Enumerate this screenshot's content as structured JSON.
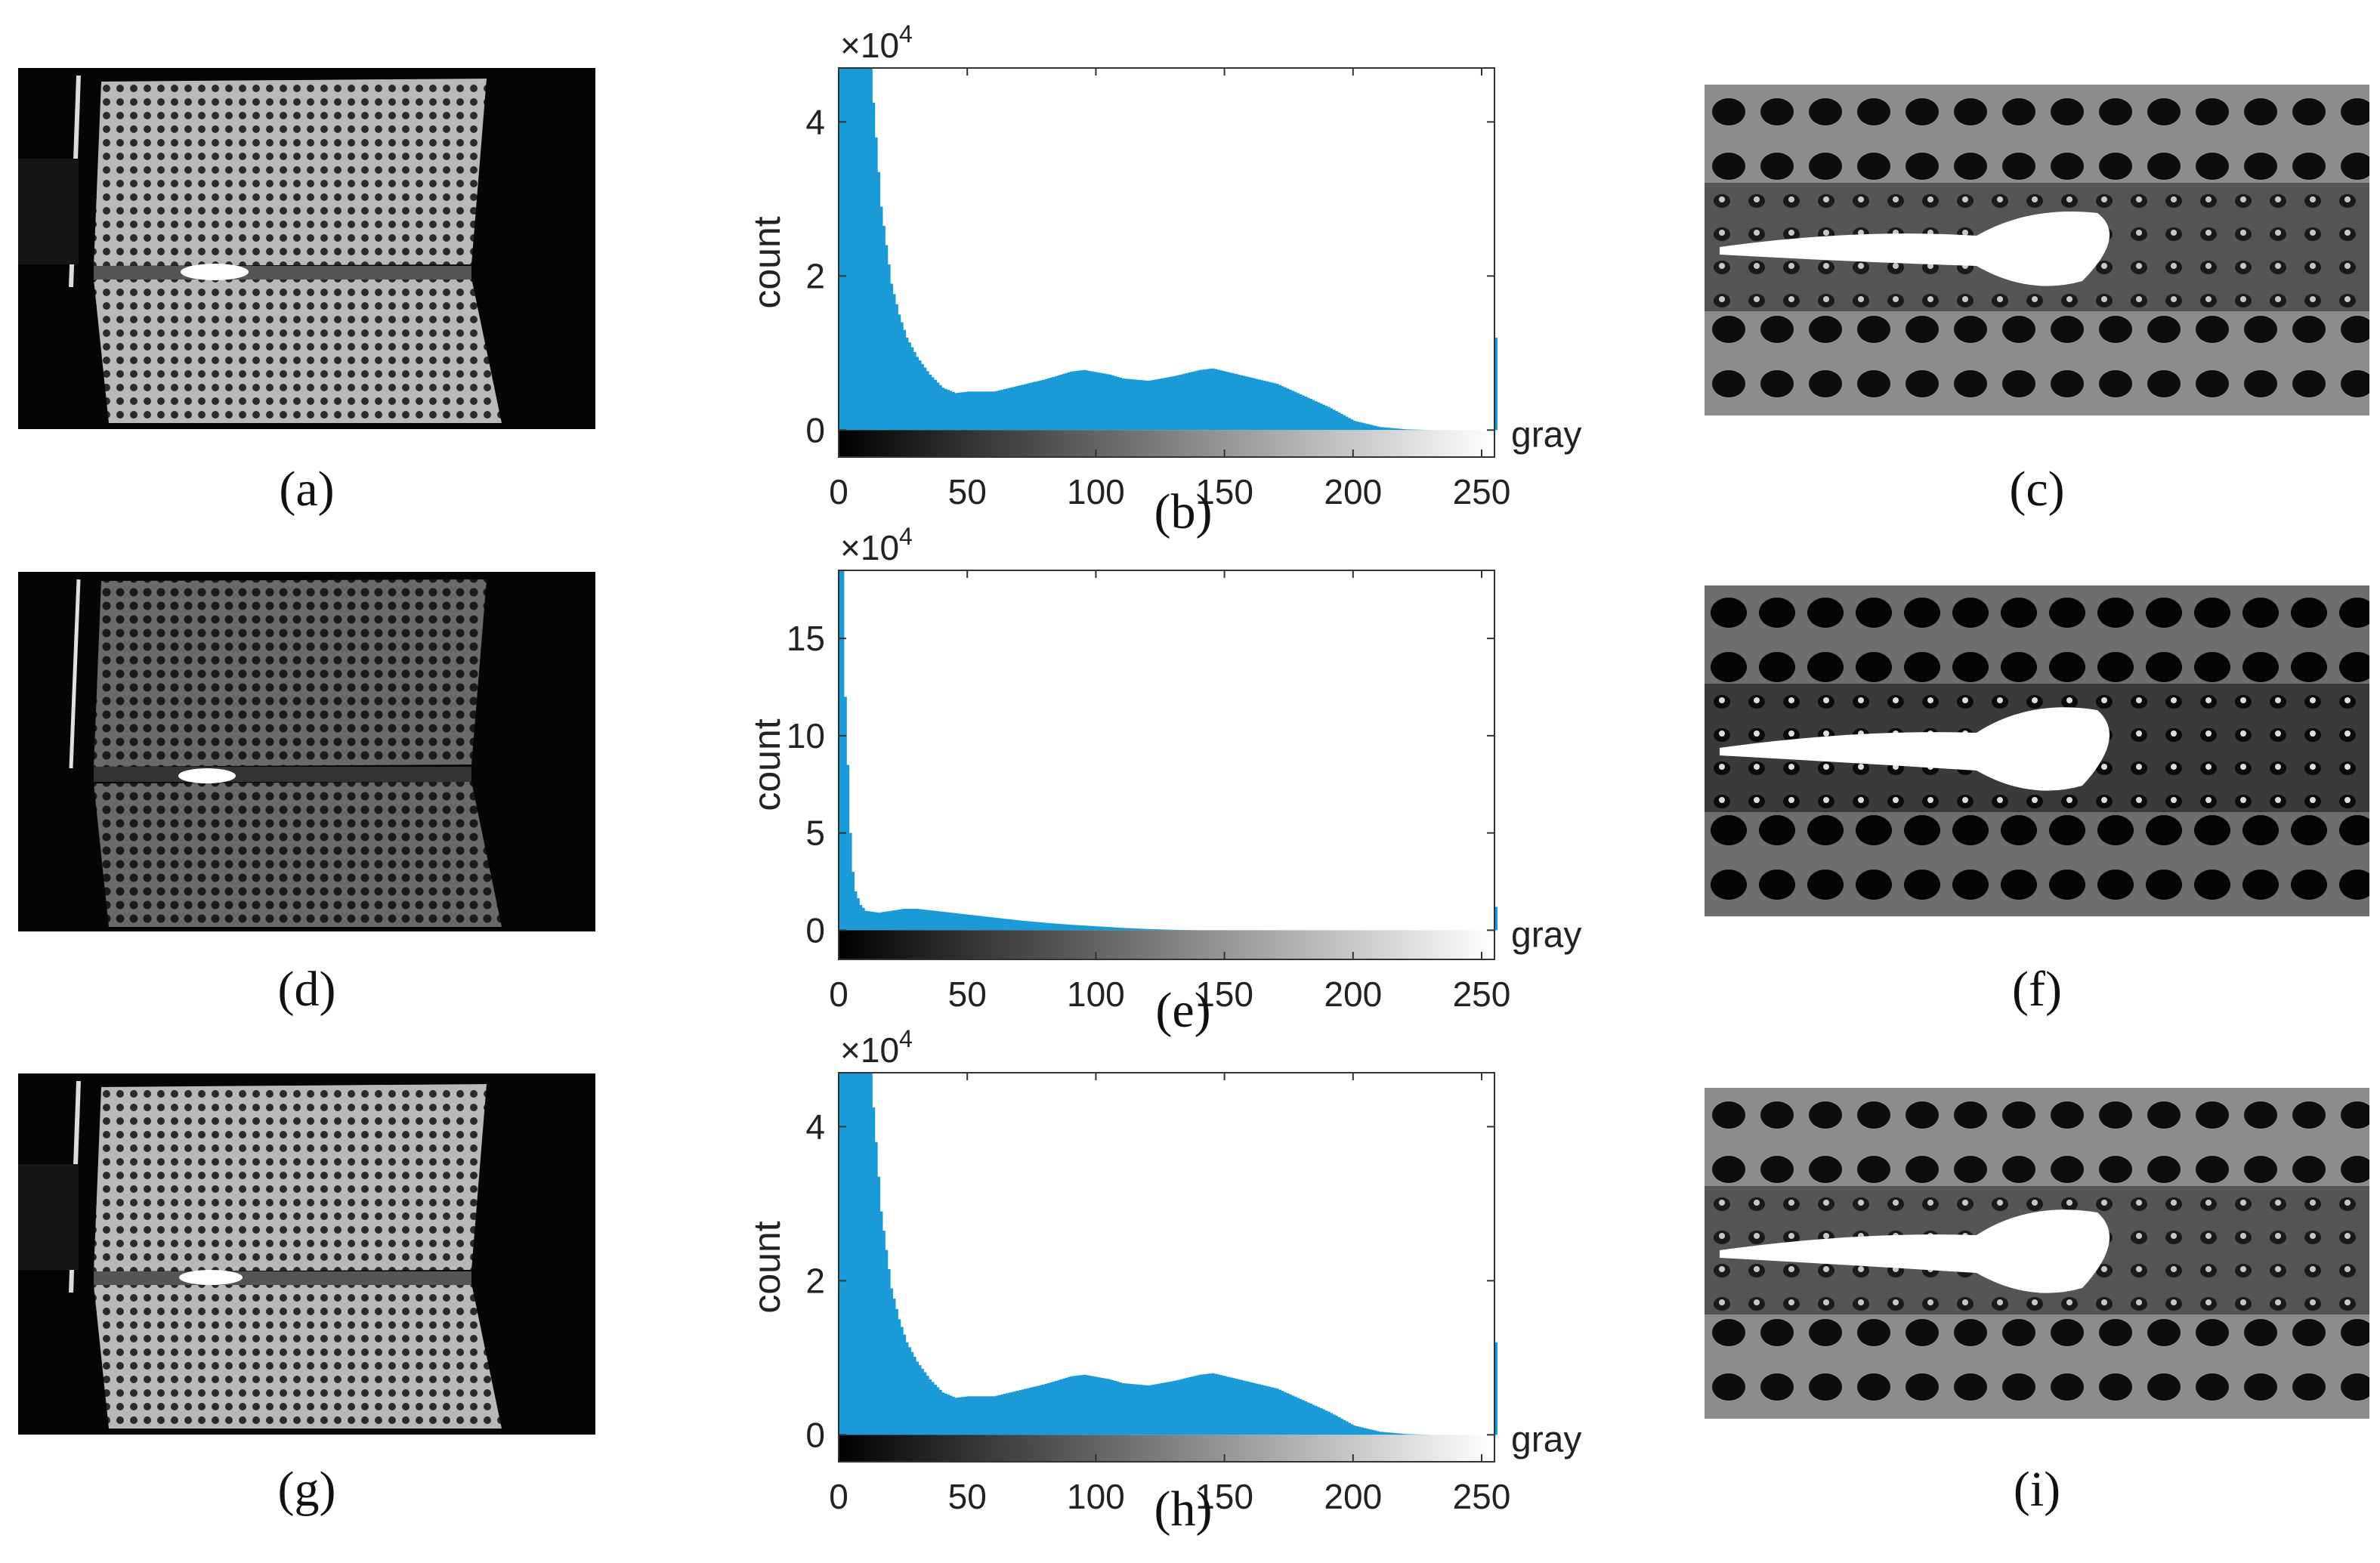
{
  "panels": {
    "a": {
      "caption": "(a)"
    },
    "b": {
      "caption": "(b)"
    },
    "c": {
      "caption": "(c)"
    },
    "d": {
      "caption": "(d)"
    },
    "e": {
      "caption": "(e)"
    },
    "f": {
      "caption": "(f)"
    },
    "g": {
      "caption": "(g)"
    },
    "h": {
      "caption": "(h)"
    },
    "i": {
      "caption": "(i)"
    }
  },
  "colors": {
    "bar": "#1a9ad6",
    "axis": "#333333"
  },
  "chart_data": [
    {
      "id": "b",
      "type": "bar",
      "ylabel": "count",
      "xlabel": "gray",
      "exponent": "×10^4",
      "xlim": [
        0,
        255
      ],
      "ylim": [
        -0.35,
        4.7
      ],
      "xticks": [
        0,
        50,
        100,
        150,
        200,
        250
      ],
      "yticks": [
        0,
        2,
        4
      ],
      "profile": [
        [
          0,
          4.7
        ],
        [
          5,
          4.7
        ],
        [
          12,
          4.7
        ],
        [
          14,
          3.8
        ],
        [
          16,
          2.9
        ],
        [
          18,
          2.4
        ],
        [
          20,
          1.9
        ],
        [
          23,
          1.5
        ],
        [
          26,
          1.2
        ],
        [
          30,
          0.95
        ],
        [
          35,
          0.72
        ],
        [
          40,
          0.55
        ],
        [
          45,
          0.48
        ],
        [
          50,
          0.5
        ],
        [
          60,
          0.5
        ],
        [
          70,
          0.58
        ],
        [
          80,
          0.66
        ],
        [
          90,
          0.76
        ],
        [
          95,
          0.78
        ],
        [
          100,
          0.75
        ],
        [
          105,
          0.72
        ],
        [
          110,
          0.67
        ],
        [
          120,
          0.64
        ],
        [
          130,
          0.7
        ],
        [
          140,
          0.78
        ],
        [
          145,
          0.8
        ],
        [
          150,
          0.76
        ],
        [
          160,
          0.68
        ],
        [
          170,
          0.6
        ],
        [
          180,
          0.45
        ],
        [
          190,
          0.3
        ],
        [
          200,
          0.12
        ],
        [
          210,
          0.04
        ],
        [
          220,
          0.01
        ],
        [
          230,
          0.0
        ],
        [
          254,
          0.0
        ],
        [
          255,
          1.2
        ]
      ]
    },
    {
      "id": "e",
      "type": "bar",
      "ylabel": "count",
      "xlabel": "gray",
      "exponent": "×10^4",
      "xlim": [
        0,
        255
      ],
      "ylim": [
        -1.5,
        18.5
      ],
      "xticks": [
        0,
        50,
        100,
        150,
        200,
        250
      ],
      "yticks": [
        0,
        5,
        10,
        15
      ],
      "profile": [
        [
          0,
          18.5
        ],
        [
          1,
          18.5
        ],
        [
          2,
          12
        ],
        [
          3,
          8.5
        ],
        [
          4,
          5
        ],
        [
          5,
          3
        ],
        [
          6,
          2
        ],
        [
          8,
          1.3
        ],
        [
          10,
          1.0
        ],
        [
          15,
          0.9
        ],
        [
          20,
          1.0
        ],
        [
          25,
          1.1
        ],
        [
          30,
          1.1
        ],
        [
          40,
          0.95
        ],
        [
          50,
          0.8
        ],
        [
          60,
          0.65
        ],
        [
          70,
          0.5
        ],
        [
          80,
          0.38
        ],
        [
          90,
          0.28
        ],
        [
          100,
          0.2
        ],
        [
          110,
          0.12
        ],
        [
          120,
          0.06
        ],
        [
          130,
          0.02
        ],
        [
          140,
          0.0
        ],
        [
          254,
          0.0
        ],
        [
          255,
          1.2
        ]
      ]
    },
    {
      "id": "h",
      "type": "bar",
      "ylabel": "count",
      "xlabel": "gray",
      "exponent": "×10^4",
      "xlim": [
        0,
        255
      ],
      "ylim": [
        -0.35,
        4.7
      ],
      "xticks": [
        0,
        50,
        100,
        150,
        200,
        250
      ],
      "yticks": [
        0,
        2,
        4
      ],
      "profile": [
        [
          0,
          4.7
        ],
        [
          5,
          4.7
        ],
        [
          12,
          4.7
        ],
        [
          14,
          3.8
        ],
        [
          16,
          2.9
        ],
        [
          18,
          2.4
        ],
        [
          20,
          1.9
        ],
        [
          23,
          1.5
        ],
        [
          26,
          1.2
        ],
        [
          30,
          0.95
        ],
        [
          35,
          0.72
        ],
        [
          40,
          0.55
        ],
        [
          45,
          0.48
        ],
        [
          50,
          0.5
        ],
        [
          60,
          0.5
        ],
        [
          70,
          0.58
        ],
        [
          80,
          0.66
        ],
        [
          90,
          0.76
        ],
        [
          95,
          0.78
        ],
        [
          100,
          0.75
        ],
        [
          105,
          0.72
        ],
        [
          110,
          0.67
        ],
        [
          120,
          0.64
        ],
        [
          130,
          0.7
        ],
        [
          140,
          0.78
        ],
        [
          145,
          0.8
        ],
        [
          150,
          0.76
        ],
        [
          160,
          0.68
        ],
        [
          170,
          0.6
        ],
        [
          180,
          0.45
        ],
        [
          190,
          0.3
        ],
        [
          200,
          0.12
        ],
        [
          210,
          0.04
        ],
        [
          220,
          0.01
        ],
        [
          230,
          0.0
        ],
        [
          254,
          0.0
        ],
        [
          255,
          1.2
        ]
      ]
    }
  ]
}
